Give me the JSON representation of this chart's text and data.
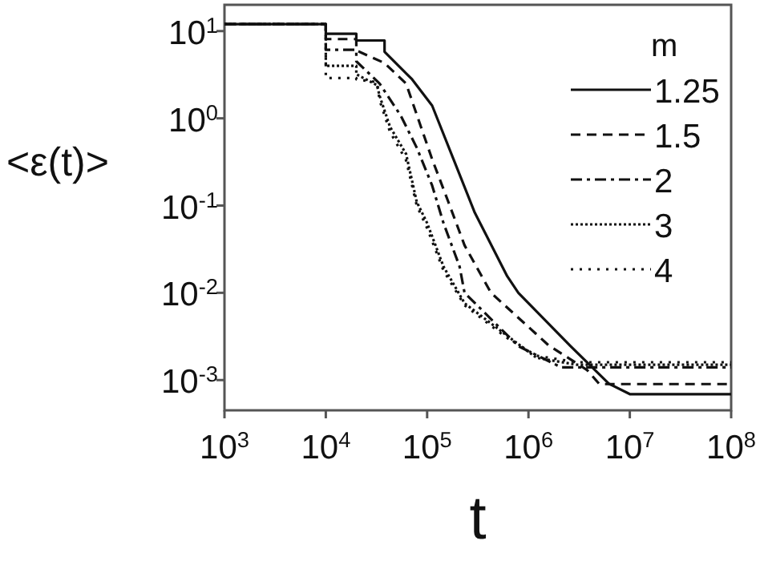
{
  "chart_data": {
    "type": "line",
    "xlabel": "t",
    "ylabel": "<ε(t)>",
    "legend_title": "m",
    "legend": "top right",
    "log": "xy",
    "xlim": [
      1000,
      100000000
    ],
    "ylim": [
      0.00045,
      20
    ],
    "xticks": [
      {
        "value": 1000,
        "label": "10$^{3}$"
      },
      {
        "value": 10000,
        "label": "10$^{4}$"
      },
      {
        "value": 100000,
        "label": "10$^{5}$"
      },
      {
        "value": 1000000,
        "label": "10$^{6}$"
      },
      {
        "value": 10000000,
        "label": "10$^{7}$"
      },
      {
        "value": 100000000,
        "label": "10$^{8}$"
      }
    ],
    "yticks": [
      {
        "value": 0.001,
        "label": "10$^{-3}$"
      },
      {
        "value": 0.01,
        "label": "10$^{-2}$"
      },
      {
        "value": 0.1,
        "label": "10$^{-1}$"
      },
      {
        "value": 1,
        "label": "10$^{0}$"
      },
      {
        "value": 10,
        "label": "10$^{1}$"
      }
    ],
    "series": [
      {
        "name": "1.25",
        "color": "#111111",
        "line_style": "solid",
        "x": [
          1000,
          10000,
          10000,
          20000,
          20000,
          38000,
          38000,
          71000,
          112000,
          182000,
          295000,
          617000,
          794000,
          2600000,
          6200000,
          10000000,
          100000000
        ],
        "values": [
          12,
          12,
          9.3,
          9.3,
          7.8,
          7.8,
          5.8,
          2.8,
          1.4,
          0.34,
          0.083,
          0.0155,
          0.01,
          0.00245,
          0.00091,
          0.00069,
          0.00069
        ]
      },
      {
        "name": "1.5",
        "color": "#111111",
        "line_style": "dashed",
        "x": [
          1000,
          10000,
          10000,
          20000,
          20000,
          38000,
          62000,
          79000,
          112000,
          162000,
          234000,
          427000,
          1580000,
          3800000,
          5000000,
          100000000
        ],
        "values": [
          12,
          12,
          8.1,
          8.1,
          6,
          4.3,
          2.5,
          1.1,
          0.34,
          0.11,
          0.035,
          0.01,
          0.0025,
          0.0013,
          0.0009,
          0.0009
        ]
      },
      {
        "name": "2",
        "color": "#111111",
        "line_style": "dashdot",
        "x": [
          1000,
          10000,
          10000,
          20000,
          20000,
          34000,
          55000,
          79000,
          112000,
          145000,
          209000,
          234000,
          794000,
          2100000,
          100000000
        ],
        "values": [
          12,
          12,
          6.1,
          6.1,
          4.5,
          2.5,
          1.07,
          0.46,
          0.17,
          0.063,
          0.02,
          0.01,
          0.00245,
          0.0014,
          0.0014
        ]
      },
      {
        "name": "3",
        "color": "#111111",
        "line_style": "dotted",
        "x": [
          1000,
          10000,
          10000,
          20000,
          20000,
          32000,
          34000,
          43000,
          62000,
          79000,
          100000,
          145000,
          234000,
          600000,
          1200000,
          3000000,
          100000000
        ],
        "values": [
          12,
          12,
          4,
          4,
          3.2,
          2.4,
          1.8,
          0.8,
          0.39,
          0.11,
          0.063,
          0.02,
          0.0076,
          0.0033,
          0.0018,
          0.0015,
          0.0015
        ]
      },
      {
        "name": "4",
        "color": "#111111",
        "line_style": "loosely dotted",
        "x": [
          1000,
          10000,
          10000,
          20000,
          20000,
          32000,
          34000,
          43000,
          62000,
          79000,
          100000,
          145000,
          234000,
          600000,
          1200000,
          3000000,
          100000000
        ],
        "values": [
          12,
          12,
          2.9,
          2.9,
          2.8,
          2.6,
          1.6,
          0.7,
          0.33,
          0.1,
          0.055,
          0.018,
          0.0072,
          0.0031,
          0.0019,
          0.0016,
          0.0016
        ]
      }
    ]
  }
}
